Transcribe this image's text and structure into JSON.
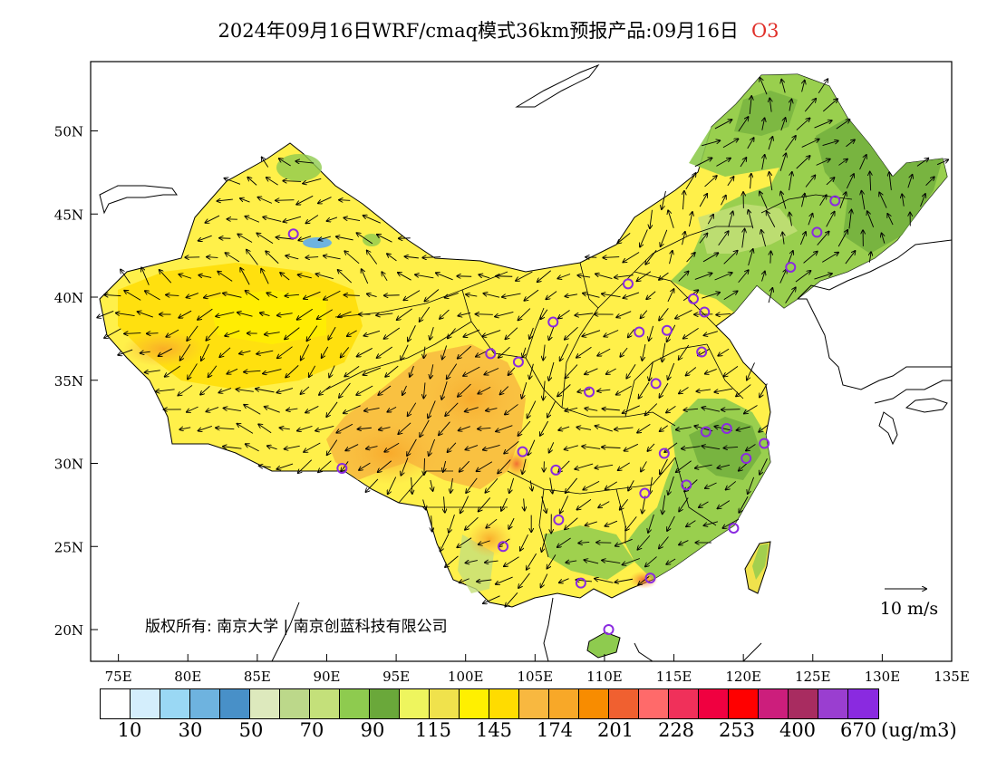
{
  "title": {
    "text": "2024年09月16日WRF/cmaq模式36km预报产品:09月16日",
    "pollutant": "O3"
  },
  "map": {
    "lon_ticks": [
      "75E",
      "80E",
      "85E",
      "90E",
      "95E",
      "100E",
      "105E",
      "110E",
      "115E",
      "120E",
      "125E",
      "130E",
      "135E"
    ],
    "lat_ticks": [
      "20N",
      "25N",
      "30N",
      "35N",
      "40N",
      "45N",
      "50N"
    ],
    "copyright": "版权所有: 南京大学 | 南京创蓝科技有限公司",
    "wind_scale_label": "10 m/s"
  },
  "colorbar": {
    "colors": [
      "#ffffff",
      "#d4eefc",
      "#9ad8f4",
      "#6eb3df",
      "#4890c8",
      "#dde9bd",
      "#bcd88a",
      "#c4e07a",
      "#8ecb4f",
      "#6aa83a",
      "#eef55e",
      "#f0e24c",
      "#fff000",
      "#ffdc00",
      "#f8b840",
      "#f8a828",
      "#f88c00",
      "#f06030",
      "#ff6a6a",
      "#f0305a",
      "#f00040",
      "#ff0000",
      "#cc1e7c",
      "#a82c60",
      "#9a3ed0",
      "#8a2ae0"
    ],
    "labels": [
      "10",
      "30",
      "50",
      "70",
      "90",
      "115",
      "145",
      "174",
      "201",
      "228",
      "253",
      "400",
      "670"
    ],
    "unit": "(ug/m3)"
  },
  "cities": [
    {
      "lon": 116.4,
      "lat": 39.9
    },
    {
      "lon": 117.2,
      "lat": 39.1
    },
    {
      "lon": 114.5,
      "lat": 38.0
    },
    {
      "lon": 112.5,
      "lat": 37.9
    },
    {
      "lon": 111.7,
      "lat": 40.8
    },
    {
      "lon": 123.4,
      "lat": 41.8
    },
    {
      "lon": 125.3,
      "lat": 43.9
    },
    {
      "lon": 126.6,
      "lat": 45.8
    },
    {
      "lon": 117.0,
      "lat": 36.7
    },
    {
      "lon": 113.7,
      "lat": 34.8
    },
    {
      "lon": 108.9,
      "lat": 34.3
    },
    {
      "lon": 103.8,
      "lat": 36.1
    },
    {
      "lon": 101.8,
      "lat": 36.6
    },
    {
      "lon": 106.3,
      "lat": 38.5
    },
    {
      "lon": 87.6,
      "lat": 43.8
    },
    {
      "lon": 91.1,
      "lat": 29.7
    },
    {
      "lon": 104.1,
      "lat": 30.7
    },
    {
      "lon": 106.5,
      "lat": 29.6
    },
    {
      "lon": 106.7,
      "lat": 26.6
    },
    {
      "lon": 102.7,
      "lat": 25.0
    },
    {
      "lon": 108.3,
      "lat": 22.8
    },
    {
      "lon": 110.3,
      "lat": 20.0
    },
    {
      "lon": 113.3,
      "lat": 23.1
    },
    {
      "lon": 112.9,
      "lat": 28.2
    },
    {
      "lon": 114.3,
      "lat": 30.6
    },
    {
      "lon": 115.9,
      "lat": 28.7
    },
    {
      "lon": 117.3,
      "lat": 31.9
    },
    {
      "lon": 118.8,
      "lat": 32.1
    },
    {
      "lon": 120.2,
      "lat": 30.3
    },
    {
      "lon": 121.5,
      "lat": 31.2
    },
    {
      "lon": 119.3,
      "lat": 26.1
    }
  ]
}
